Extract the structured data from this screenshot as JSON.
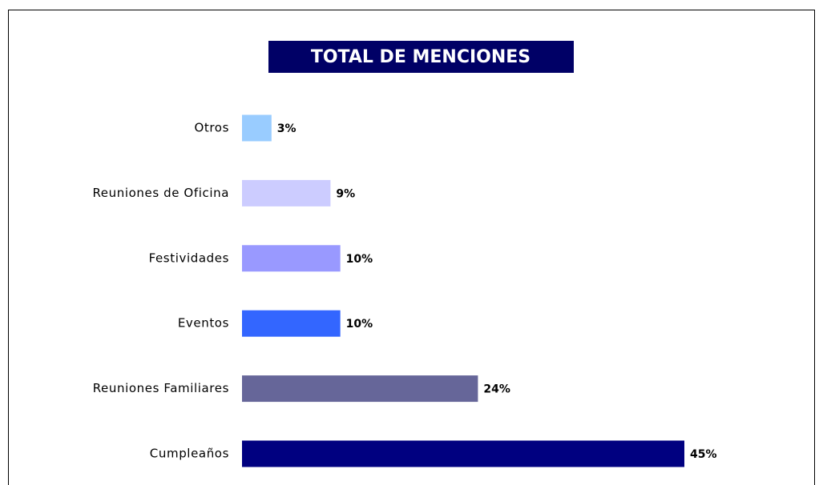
{
  "chart_data": {
    "type": "bar",
    "orientation": "horizontal",
    "title": "TOTAL DE MENCIONES",
    "categories": [
      "Otros",
      "Reuniones de Oficina",
      "Festividades",
      "Eventos",
      "Reuniones Familiares",
      "Cumpleaños"
    ],
    "values": [
      3,
      9,
      10,
      10,
      24,
      45
    ],
    "value_labels": [
      "3%",
      "9%",
      "10%",
      "10%",
      "24%",
      "45%"
    ],
    "colors": [
      "#99ccff",
      "#ccccff",
      "#9999ff",
      "#3366ff",
      "#666699",
      "#000080"
    ]
  }
}
